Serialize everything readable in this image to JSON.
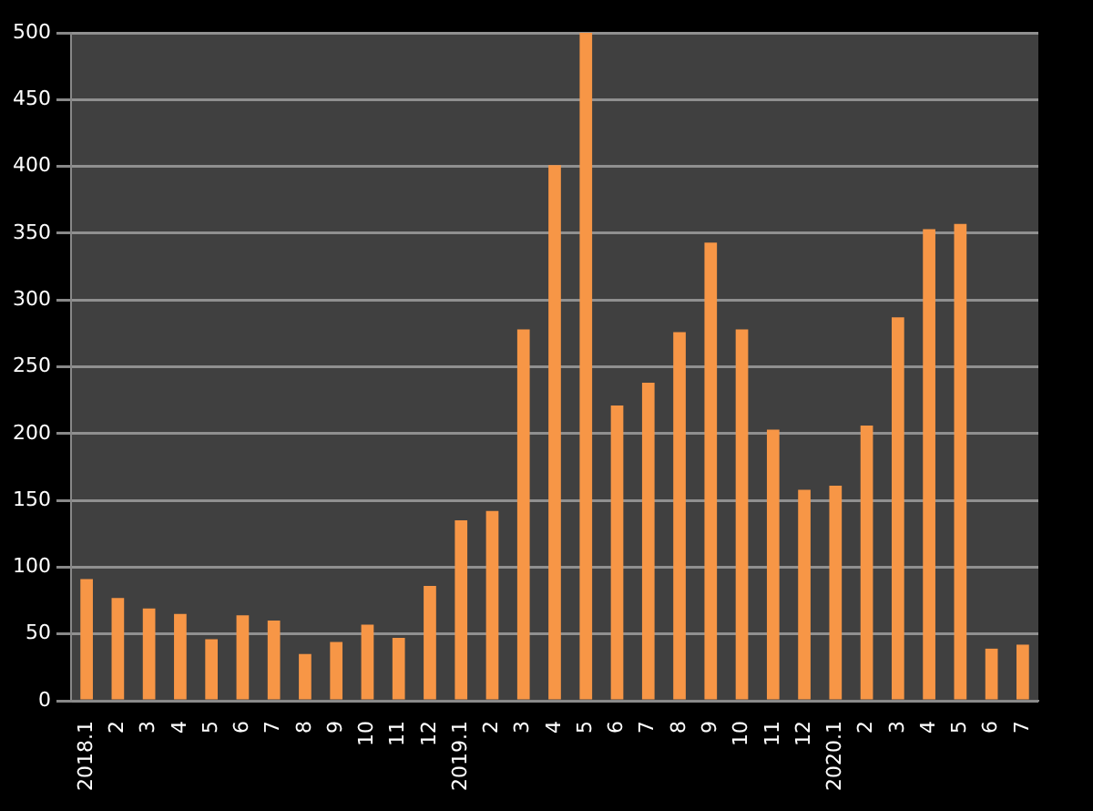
{
  "chart_data": {
    "type": "bar",
    "categories": [
      "2018.1",
      "2",
      "3",
      "4",
      "5",
      "6",
      "7",
      "8",
      "9",
      "10",
      "11",
      "12",
      "2019.1",
      "2",
      "3",
      "4",
      "5",
      "6",
      "7",
      "8",
      "9",
      "10",
      "11",
      "12",
      "2020.1",
      "2",
      "3",
      "4",
      "5",
      "6",
      "7"
    ],
    "values": [
      91,
      77,
      69,
      65,
      46,
      64,
      60,
      35,
      44,
      57,
      47,
      86,
      135,
      142,
      278,
      401,
      500,
      221,
      238,
      276,
      343,
      278,
      203,
      158,
      161,
      206,
      287,
      353,
      357,
      39,
      42
    ],
    "color": "#f79646",
    "ylim": [
      0,
      500
    ],
    "yticks": [
      0,
      50,
      100,
      150,
      200,
      250,
      300,
      350,
      400,
      450,
      500
    ],
    "grid": "y"
  }
}
